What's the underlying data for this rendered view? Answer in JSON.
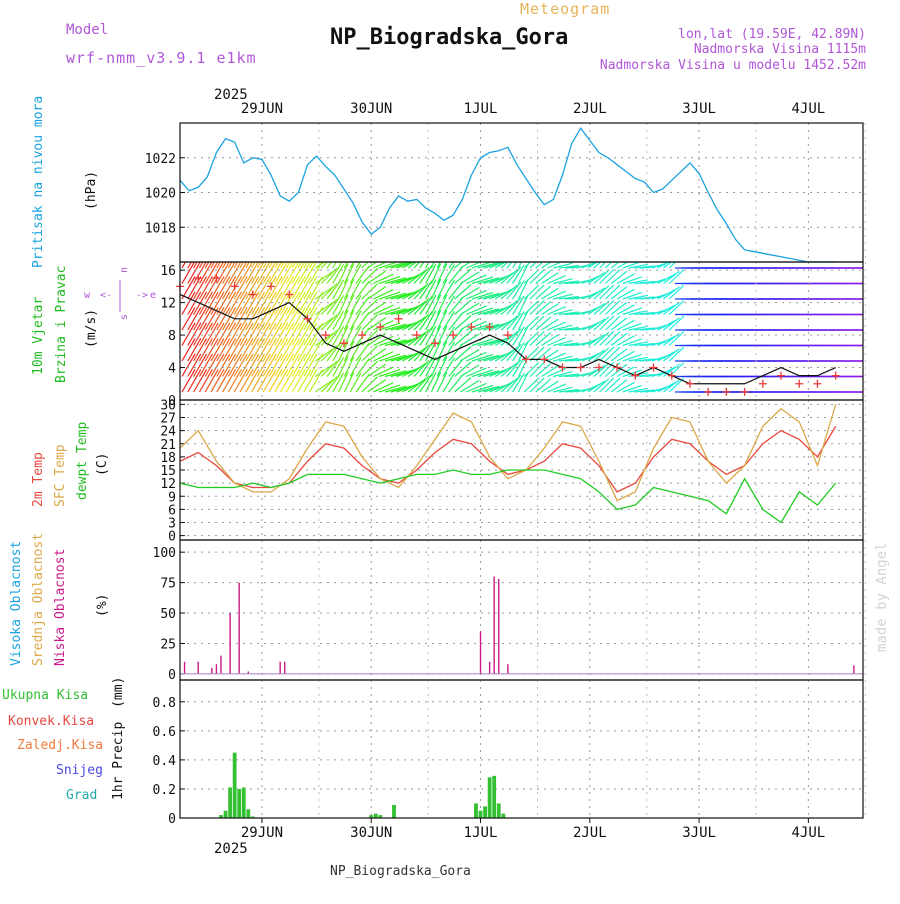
{
  "header": {
    "model_label": "Model",
    "model_name": "wrf-nmm_v3.9.1 e1km",
    "chart_kind": "Meteogram",
    "station_name": "NP_Biogradska_Gora",
    "coords": "lon,lat (19.59E, 42.89N)",
    "altitude": "Nadmorska Visina 1115m",
    "model_altitude": "Nadmorska Visina u modelu 1452.52m",
    "footer_station": "NP_Biogradska_Gora",
    "credit": "made by Angel"
  },
  "colors": {
    "pressure": "#1aa3e0",
    "temp_2m": "#e8483e",
    "temp_sfc": "#dca848",
    "dewpoint": "#22cc22",
    "cloud_low": "#cc1888",
    "precip_total": "#33c033",
    "label_purple": "#b056d6",
    "label_orange": "#e8b458"
  },
  "time_axis": {
    "year": "2025",
    "day_labels": [
      "29JUN",
      "30JUN",
      "1JUL",
      "2JUL",
      "3JUL",
      "4JUL"
    ]
  },
  "chart_data": [
    {
      "type": "line",
      "id": "pressure",
      "ylabel": "Pritisak na nivou mora",
      "unit": "(hPa)",
      "ylim": [
        1016.0,
        1024.0
      ],
      "yticks": [
        1018,
        1020,
        1022
      ],
      "grid": true,
      "x_hours": [
        0,
        2,
        4,
        6,
        8,
        10,
        12,
        14,
        16,
        18,
        20,
        22,
        24,
        26,
        28,
        30,
        32,
        34,
        36,
        38,
        40,
        42,
        44,
        46,
        48,
        50,
        52,
        54,
        56,
        58,
        60,
        62,
        64,
        66,
        68,
        70,
        72,
        74,
        76,
        78,
        80,
        82,
        84,
        86,
        88,
        90,
        92,
        94,
        96,
        98,
        100,
        102,
        104,
        106,
        108,
        110,
        112,
        114,
        116,
        118,
        120,
        122,
        124,
        126,
        128,
        130,
        132,
        134,
        136,
        138,
        140,
        142,
        144
      ],
      "series": [
        {
          "values": [
            1020.7,
            1020.1,
            1020.3,
            1020.9,
            1022.3,
            1023.1,
            1022.9,
            1021.7,
            1022.0,
            1021.9,
            1021.0,
            1019.8,
            1019.5,
            1020.0,
            1021.6,
            1022.1,
            1021.5,
            1021.0,
            1020.2,
            1019.4,
            1018.3,
            1017.6,
            1018.0,
            1019.1,
            1019.8,
            1019.5,
            1019.6,
            1019.1,
            1018.8,
            1018.4,
            1018.7,
            1019.6,
            1021.0,
            1022.0,
            1022.3,
            1022.4,
            1022.6,
            1021.6,
            1020.8,
            1020.0,
            1019.3,
            1019.6,
            1021.0,
            1022.8,
            1023.7,
            1023.0,
            1022.3,
            1022.0,
            1021.6,
            1021.2,
            1020.8,
            1020.6,
            1020.0,
            1020.2,
            1020.7,
            1021.2,
            1021.7,
            1021.1,
            1020.0,
            1019.0,
            1018.2,
            1017.3,
            1016.7,
            1016.6,
            1016.5,
            1016.4,
            1016.3,
            1016.2,
            1016.1,
            1016.0,
            1016.0,
            1016.0,
            1016.0
          ]
        }
      ]
    },
    {
      "type": "line",
      "id": "wind",
      "ylabel": "10m Vjetar Brzina i Pravac",
      "unit": "(m/s)",
      "compass": "w <-|-> e  n ^ s",
      "ylim": [
        0,
        17
      ],
      "yticks": [
        0,
        4,
        8,
        12,
        16
      ],
      "grid": true,
      "x_hours": [
        0,
        4,
        8,
        12,
        16,
        20,
        24,
        28,
        32,
        36,
        40,
        44,
        48,
        52,
        56,
        60,
        64,
        68,
        72,
        76,
        80,
        84,
        88,
        92,
        96,
        100,
        104,
        108,
        112,
        116,
        120,
        124,
        128,
        132,
        136,
        140,
        144
      ],
      "series": [
        {
          "name": "speed",
          "values": [
            13,
            12,
            11,
            10,
            10,
            11,
            12,
            10,
            7,
            6,
            7,
            8,
            7,
            6,
            5,
            6,
            7,
            8,
            7,
            5,
            5,
            4,
            4,
            5,
            4,
            3,
            4,
            3,
            2,
            2,
            2,
            2,
            3,
            4,
            3,
            3,
            4
          ]
        },
        {
          "name": "gust",
          "values": [
            14,
            15,
            15,
            14,
            13,
            14,
            13,
            10,
            8,
            7,
            8,
            9,
            10,
            8,
            7,
            8,
            9,
            9,
            8,
            5,
            5,
            4,
            4,
            4,
            4,
            3,
            4,
            3,
            2,
            1,
            1,
            1,
            2,
            3,
            2,
            2,
            3
          ]
        }
      ]
    },
    {
      "type": "line",
      "id": "temperature",
      "ylabel": "2m Temp SFC Temp dewpt Temp",
      "series_labels": [
        "2m Temp",
        "SFC Temp",
        "dewpt Temp"
      ],
      "unit": "(C)",
      "ylim": [
        -1,
        31
      ],
      "yticks": [
        0,
        3,
        6,
        9,
        12,
        15,
        18,
        21,
        24,
        27,
        30
      ],
      "grid": true,
      "x_hours": [
        0,
        4,
        8,
        12,
        16,
        20,
        24,
        28,
        32,
        36,
        40,
        44,
        48,
        52,
        56,
        60,
        64,
        68,
        72,
        76,
        80,
        84,
        88,
        92,
        96,
        100,
        104,
        108,
        112,
        116,
        120,
        124,
        128,
        132,
        136,
        140,
        144
      ],
      "series": [
        {
          "name": "2m Temp",
          "values": [
            17,
            19,
            16,
            12,
            11,
            11,
            12,
            17,
            21,
            20,
            16,
            13,
            12,
            15,
            19,
            22,
            21,
            17,
            14,
            15,
            17,
            21,
            20,
            16,
            10,
            12,
            18,
            22,
            21,
            17,
            14,
            16,
            21,
            24,
            22,
            18,
            25
          ]
        },
        {
          "name": "SFC Temp",
          "values": [
            20,
            24,
            17,
            12,
            10,
            10,
            13,
            20,
            26,
            25,
            18,
            13,
            11,
            16,
            22,
            28,
            26,
            18,
            13,
            15,
            20,
            26,
            25,
            17,
            8,
            10,
            20,
            27,
            26,
            17,
            12,
            16,
            25,
            29,
            26,
            16,
            30
          ]
        },
        {
          "name": "dewpt Temp",
          "values": [
            12,
            11,
            11,
            11,
            12,
            11,
            12,
            14,
            14,
            14,
            13,
            12,
            13,
            14,
            14,
            15,
            14,
            14,
            15,
            15,
            15,
            14,
            13,
            10,
            6,
            7,
            11,
            10,
            9,
            8,
            5,
            13,
            6,
            3,
            10,
            7,
            12
          ]
        }
      ]
    },
    {
      "type": "bar",
      "id": "cloud",
      "ylabel": "Visoka Oblacnost Srednja Oblacnost Niska Oblacnost",
      "series_labels": [
        "Visoka Oblacnost",
        "Srednja Oblacnost",
        "Niska Oblacnost"
      ],
      "unit": "(%)",
      "ylim": [
        -5,
        110
      ],
      "yticks": [
        0,
        25,
        50,
        75,
        100
      ],
      "grid": true,
      "x_hours": [
        1,
        4,
        7,
        8,
        9,
        11,
        13,
        15,
        22,
        23,
        66,
        68,
        69,
        70,
        72,
        148
      ],
      "series": [
        {
          "name": "Niska Oblacnost",
          "values": [
            10,
            10,
            5,
            8,
            15,
            50,
            75,
            2,
            10,
            10,
            35,
            10,
            80,
            78,
            8,
            7
          ]
        }
      ]
    },
    {
      "type": "bar",
      "id": "precip",
      "ylabel": "1hr Precip",
      "unit": "(mm)",
      "legend": [
        "Ukupna Kisa",
        "Konvek.Kisa",
        "Zaledj.Kisa",
        "Snijeg",
        "Grad"
      ],
      "ylim": [
        0,
        0.95
      ],
      "yticks": [
        0,
        0.2,
        0.4,
        0.6,
        0.8
      ],
      "grid": true,
      "x_hours": [
        9,
        10,
        11,
        12,
        13,
        14,
        15,
        16,
        42,
        43,
        44,
        47,
        65,
        66,
        67,
        68,
        69,
        70,
        71
      ],
      "series": [
        {
          "name": "Ukupna Kisa",
          "values": [
            0.02,
            0.05,
            0.21,
            0.45,
            0.2,
            0.21,
            0.06,
            0.01,
            0.02,
            0.03,
            0.02,
            0.09,
            0.1,
            0.05,
            0.08,
            0.28,
            0.29,
            0.1,
            0.03
          ]
        }
      ]
    }
  ]
}
